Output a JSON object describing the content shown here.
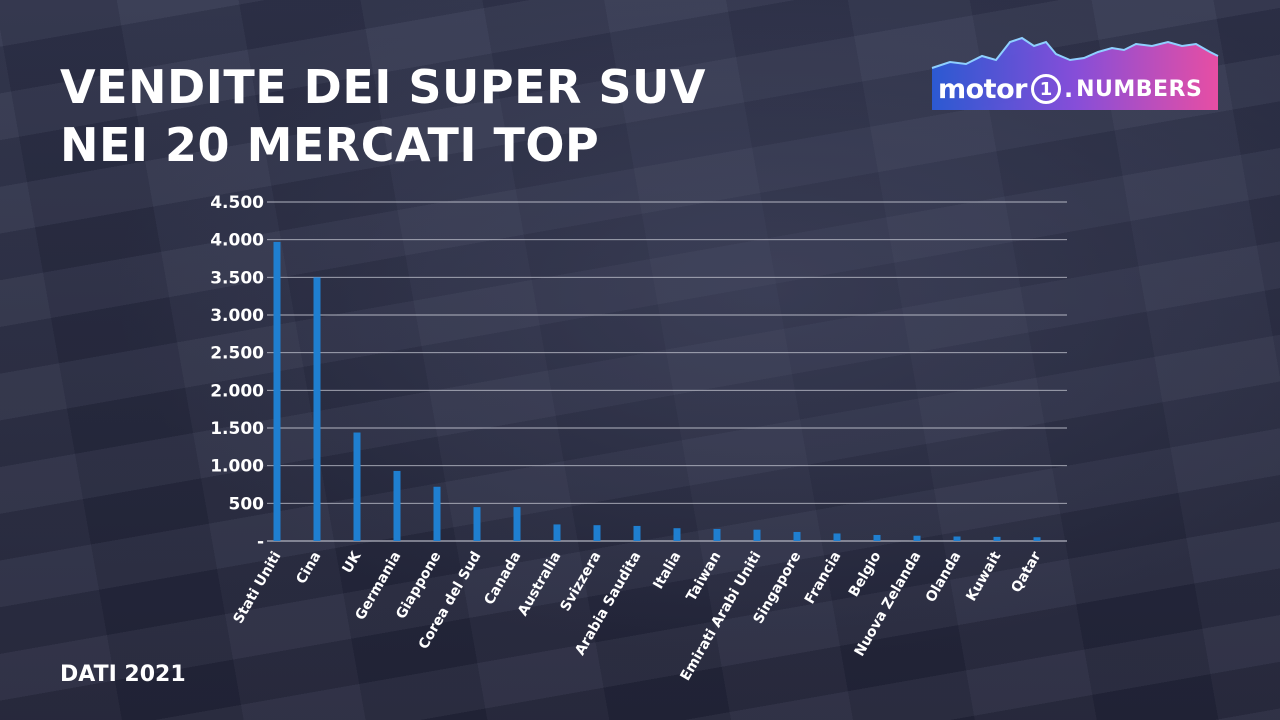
{
  "title_lines": [
    "VENDITE DEI SUPER SUV",
    "NEI 20 MERCATI TOP"
  ],
  "footer": "DATI 2021",
  "logo": {
    "word": "motor",
    "badge": "1",
    "dot": ".",
    "numbers": "NUMBERS"
  },
  "colors": {
    "bar": "#1f7fd0",
    "grid": "#c9cbd6",
    "text": "#ffffff"
  },
  "chart_data": {
    "type": "bar",
    "title": "VENDITE DEI SUPER SUV NEI 20 MERCATI TOP",
    "categories": [
      "Stati Uniti",
      "Cina",
      "UK",
      "Germania",
      "Giappone",
      "Corea del Sud",
      "Canada",
      "Australia",
      "Svizzera",
      "Arabia Saudita",
      "Italia",
      "Taiwan",
      "Emirati Arabi Uniti",
      "Singapore",
      "Francia",
      "Belgio",
      "Nuova Zelanda",
      "Olanda",
      "Kuwait",
      "Qatar"
    ],
    "values": [
      3970,
      3500,
      1440,
      930,
      720,
      450,
      450,
      220,
      210,
      200,
      170,
      160,
      150,
      120,
      100,
      80,
      70,
      60,
      55,
      50
    ],
    "ylim": [
      0,
      4500
    ],
    "yticks": [
      0,
      500,
      1000,
      1500,
      2000,
      2500,
      3000,
      3500,
      4000,
      4500
    ],
    "ytick_labels": [
      "-",
      "500",
      "1.000",
      "1.500",
      "2.000",
      "2.500",
      "3.000",
      "3.500",
      "4.000",
      "4.500"
    ],
    "grid": true,
    "legend": "none"
  }
}
